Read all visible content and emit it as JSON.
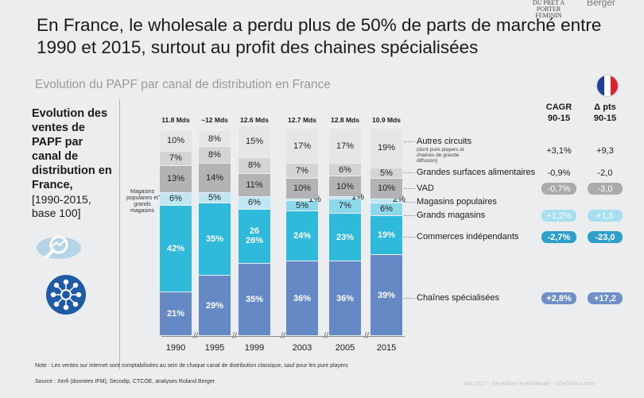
{
  "title": "En France, le wholesale a perdu plus de 50% de parts de marché entre 1990 et 2015, surtout au profit des chaines spécialisées",
  "subtitle": "Evolution du PAPF par canal de distribution en France",
  "left_title": "Evolution des ventes de PAPF par canal de distribution en France,",
  "left_sub": "[1990-2015, base 100]",
  "magasins_label": "Magasins populaires et grands magasins",
  "logo_text": "DU PRET A PORTER FEMININ",
  "brand": "Berger",
  "note": "Note : Les ventes sur internet sont comptabilisées au sein de chaque canal de distribution classique, sauf pour les pure players",
  "source": "Source : Xerfi (données IFM), Secodip, CTCOE, analyses Roland Berger",
  "footer_faint": "Juin 2017 - Revitaliser le wholesale - ©Dell'Anna.com",
  "col_headers": {
    "cagr": "CAGR 90-15",
    "delta": "Δ pts 90-15"
  },
  "colors": {
    "autres": "#e6e6e6",
    "gsa": "#d4d4d6",
    "vad": "#b3b3b6",
    "pop": "#bfe7f3",
    "grands": "#8dd9ec",
    "indep": "#2fb9da",
    "chaines": "#6489c4",
    "pill_dark": "#2e9fc9",
    "pill_light": "#a6e0f0",
    "pill_grey": "#aaaaad",
    "pill_blue": "#6f8fc7"
  },
  "legend": [
    {
      "label": "Autres circuits",
      "sub": "(dont pure players et chaines de grande diffusion)",
      "cagr": "+3,1%",
      "delta": "+9,3",
      "pill": "none"
    },
    {
      "label": "Grandes surfaces alimentaires",
      "cagr": "-0,9%",
      "delta": "-2,0",
      "pill": "none"
    },
    {
      "label": "VAD",
      "cagr": "-0,7%",
      "delta": "-3,0",
      "pill": "grey"
    },
    {
      "label": "Magasins populaires",
      "cagr": "",
      "delta": "",
      "pill": "none"
    },
    {
      "label": "Grands magasins",
      "cagr": "+1,2%",
      "delta": "+1,5",
      "pill": "light"
    },
    {
      "label": "Commerces indépendants",
      "cagr": "-2,7%",
      "delta": "-23,0",
      "pill": "dark"
    },
    {
      "label": "Chaînes spécialisées",
      "cagr": "+2,8%",
      "delta": "+17,2",
      "pill": "blue"
    }
  ],
  "chart_data": {
    "type": "bar",
    "stacked": true,
    "normalized_percent": true,
    "title": "Evolution du PAPF par canal de distribution en France",
    "categories": [
      "1990",
      "1995",
      "1999",
      "2003",
      "2005",
      "2015"
    ],
    "totals": [
      "11.8 Mds",
      "~12 Mds",
      "12.6 Mds",
      "12.7 Mds",
      "12.8 Mds",
      "10.9 Mds"
    ],
    "series": [
      {
        "key": "chaines",
        "name": "Chaînes spécialisées",
        "values": [
          21,
          29,
          35,
          36,
          36,
          39
        ],
        "labels": [
          "21%",
          "29%",
          "35%",
          "36%",
          "36%",
          "39%"
        ]
      },
      {
        "key": "indep",
        "name": "Commerces indépendants",
        "values": [
          42,
          35,
          26,
          24,
          23,
          19
        ],
        "labels": [
          "42%",
          "35%",
          "26%",
          "24%",
          "23%",
          "19%"
        ]
      },
      {
        "key": "grands",
        "name": "Grands magasins",
        "values": [
          0,
          0,
          0,
          5,
          7,
          6
        ],
        "labels": [
          "",
          "",
          "",
          "5%",
          "7%",
          "6%"
        ]
      },
      {
        "key": "pop",
        "name": "Magasins populaires",
        "values": [
          6,
          5,
          6,
          1,
          1,
          2
        ],
        "labels": [
          "6%",
          "5%",
          "6%",
          "1%",
          "1%",
          "2%"
        ]
      },
      {
        "key": "vad",
        "name": "VAD",
        "values": [
          13,
          14,
          11,
          10,
          10,
          10
        ],
        "labels": [
          "13%",
          "14%",
          "11%",
          "10%",
          "10%",
          "10%"
        ]
      },
      {
        "key": "gsa",
        "name": "Grandes surfaces alimentaires",
        "values": [
          7,
          8,
          8,
          7,
          6,
          5
        ],
        "labels": [
          "7%",
          "8%",
          "8%",
          "7%",
          "6%",
          "5%"
        ]
      },
      {
        "key": "autres",
        "name": "Autres circuits",
        "values": [
          10,
          8,
          15,
          17,
          17,
          19
        ],
        "labels": [
          "10%",
          "8%",
          "15%",
          "17%",
          "17%",
          "19%"
        ]
      }
    ],
    "extra_label": {
      "category": "1999",
      "text": "26"
    },
    "ylabel": "",
    "xlabel": ""
  }
}
